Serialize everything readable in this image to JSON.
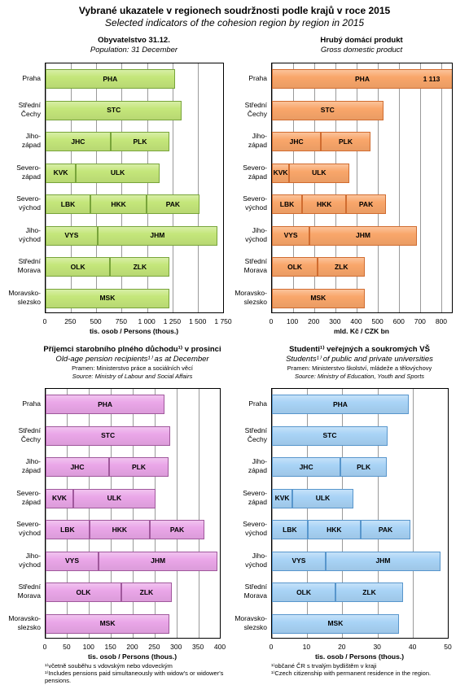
{
  "title": "Vybrané ukazatele v regionech soudržnosti podle krajů v roce 2015",
  "subtitle": "Selected indicators of the cohesion region by region in 2015",
  "chart_data": [
    {
      "type": "bar",
      "orientation": "horizontal",
      "stacked": true,
      "color": "#c4e67a",
      "border_color": "#78a43a",
      "title": "Obyvatelstvo 31.12.",
      "subtitle": "Population: 31 December",
      "x_label": "tis. osob / Persons (thous.)",
      "xlim": [
        0,
        1750
      ],
      "xticks": [
        0,
        250,
        500,
        750,
        {
          "value": 1000,
          "label": "1 000"
        },
        {
          "value": 1250,
          "label": "1 250"
        },
        {
          "value": 1500,
          "label": "1 500"
        },
        {
          "value": 1750,
          "label": "1 750"
        }
      ],
      "grid": true,
      "bars": [
        {
          "category": "Praha",
          "segments": [
            {
              "label": "PHA",
              "value": 1268
            }
          ]
        },
        {
          "category": "Střední\nČechy",
          "segments": [
            {
              "label": "STC",
              "value": 1338
            }
          ]
        },
        {
          "category": "Jiho-\nzápad",
          "segments": [
            {
              "label": "JHC",
              "value": 638
            },
            {
              "label": "PLK",
              "value": 578
            }
          ]
        },
        {
          "category": "Severo-\nzápad",
          "segments": [
            {
              "label": "KVK",
              "value": 297
            },
            {
              "label": "ULK",
              "value": 822
            }
          ]
        },
        {
          "category": "Severo-\nvýchod",
          "segments": [
            {
              "label": "LBK",
              "value": 440
            },
            {
              "label": "HKK",
              "value": 551
            },
            {
              "label": "PAK",
              "value": 517
            }
          ]
        },
        {
          "category": "Jiho-\nvýchod",
          "segments": [
            {
              "label": "VYS",
              "value": 510
            },
            {
              "label": "JHM",
              "value": 1176
            }
          ]
        },
        {
          "category": "Střední\nMorava",
          "segments": [
            {
              "label": "OLK",
              "value": 634
            },
            {
              "label": "ZLK",
              "value": 584
            }
          ]
        },
        {
          "category": "Moravsko-\nslezsko",
          "segments": [
            {
              "label": "MSK",
              "value": 1213
            }
          ]
        }
      ]
    },
    {
      "type": "bar",
      "orientation": "horizontal",
      "stacked": true,
      "color": "#f9a66a",
      "border_color": "#d06c30",
      "title": "Hrubý domácí produkt",
      "subtitle": "Gross domestic product",
      "x_label": "mld. Kč / CZK bn",
      "xlim": [
        0,
        850
      ],
      "xticks": [
        0,
        100,
        200,
        300,
        400,
        500,
        600,
        700,
        800
      ],
      "grid": true,
      "bars": [
        {
          "category": "Praha",
          "segments": [
            {
              "label": "PHA",
              "value": 1113,
              "value_label": "1 113"
            }
          ]
        },
        {
          "category": "Střední\nČechy",
          "segments": [
            {
              "label": "STC",
              "value": 523
            }
          ]
        },
        {
          "category": "Jiho-\nzápad",
          "segments": [
            {
              "label": "JHC",
              "value": 231
            },
            {
              "label": "PLK",
              "value": 231
            }
          ]
        },
        {
          "category": "Severo-\nzápad",
          "segments": [
            {
              "label": "KVK",
              "value": 81
            },
            {
              "label": "ULK",
              "value": 281
            }
          ]
        },
        {
          "category": "Severo-\nvýchod",
          "segments": [
            {
              "label": "LBK",
              "value": 142
            },
            {
              "label": "HKK",
              "value": 208
            },
            {
              "label": "PAK",
              "value": 185
            }
          ]
        },
        {
          "category": "Jiho-\nvýchod",
          "segments": [
            {
              "label": "VYS",
              "value": 177
            },
            {
              "label": "JHM",
              "value": 504
            }
          ]
        },
        {
          "category": "Střední\nMorava",
          "segments": [
            {
              "label": "OLK",
              "value": 215
            },
            {
              "label": "ZLK",
              "value": 223
            }
          ]
        },
        {
          "category": "Moravsko-\nslezsko",
          "segments": [
            {
              "label": "MSK",
              "value": 435
            }
          ]
        }
      ]
    },
    {
      "type": "bar",
      "orientation": "horizontal",
      "stacked": true,
      "color": "#eaa6e8",
      "border_color": "#a0589c",
      "title": "Příjemci starobního plného důchodu¹⁾ v prosinci",
      "subtitle": "Old-age pension recipients¹⁾ as at December",
      "source_cz": "Pramen: Ministerstvo práce a sociálních věcí",
      "source_en": "Source: Ministry of Labour and Social Affairs",
      "x_label": "tis. osob / Persons (thous.)",
      "xlim": [
        0,
        400
      ],
      "xticks": [
        0,
        50,
        100,
        150,
        200,
        250,
        300,
        350,
        400
      ],
      "grid": true,
      "footnotes": [
        "¹⁾včetně souběhu s vdovským nebo vdoveckým",
        "¹⁾Includes pensions paid simultaneously with widow's or widower's pensions."
      ],
      "bars": [
        {
          "category": "Praha",
          "segments": [
            {
              "label": "PHA",
              "value": 272
            }
          ]
        },
        {
          "category": "Střední\nČechy",
          "segments": [
            {
              "label": "STC",
              "value": 285
            }
          ]
        },
        {
          "category": "Jiho-\nzápad",
          "segments": [
            {
              "label": "JHC",
              "value": 145
            },
            {
              "label": "PLK",
              "value": 136
            }
          ]
        },
        {
          "category": "Severo-\nzápad",
          "segments": [
            {
              "label": "KVK",
              "value": 63
            },
            {
              "label": "ULK",
              "value": 188
            }
          ]
        },
        {
          "category": "Severo-\nvýchod",
          "segments": [
            {
              "label": "LBK",
              "value": 100
            },
            {
              "label": "HKK",
              "value": 138
            },
            {
              "label": "PAK",
              "value": 125
            }
          ]
        },
        {
          "category": "Jiho-\nvýchod",
          "segments": [
            {
              "label": "VYS",
              "value": 121
            },
            {
              "label": "JHM",
              "value": 272
            }
          ]
        },
        {
          "category": "Střední\nMorava",
          "segments": [
            {
              "label": "OLK",
              "value": 173
            },
            {
              "label": "ZLK",
              "value": 115
            }
          ]
        },
        {
          "category": "Moravsko-\nslezsko",
          "segments": [
            {
              "label": "MSK",
              "value": 283
            }
          ]
        }
      ]
    },
    {
      "type": "bar",
      "orientation": "horizontal",
      "stacked": true,
      "color": "#a8d3f6",
      "border_color": "#5896cc",
      "title": "Studenti¹⁾ veřejných a soukromých VŠ",
      "subtitle": "Students¹⁾ of public and private universities",
      "source_cz": "Pramen: Ministerstvo školství, mládeže a tělovýchovy",
      "source_en": "Source: Ministry of Education, Youth and Sports",
      "x_label": "tis. osob / Persons (thous.)",
      "xlim": [
        0,
        50
      ],
      "xticks": [
        0,
        10,
        20,
        30,
        40,
        50
      ],
      "grid": true,
      "footnotes": [
        "¹⁾občané ČR s trvalým bydlištěm v kraji",
        "¹⁾Czech citizenship with permanent residence in the region."
      ],
      "bars": [
        {
          "category": "Praha",
          "segments": [
            {
              "label": "PHA",
              "value": 38.7
            }
          ]
        },
        {
          "category": "Střední\nČechy",
          "segments": [
            {
              "label": "STC",
              "value": 32.7
            }
          ]
        },
        {
          "category": "Jiho-\nzápad",
          "segments": [
            {
              "label": "JHC",
              "value": 19.4
            },
            {
              "label": "PLK",
              "value": 13.1
            }
          ]
        },
        {
          "category": "Severo-\nzápad",
          "segments": [
            {
              "label": "KVK",
              "value": 5.8
            },
            {
              "label": "ULK",
              "value": 17.2
            }
          ]
        },
        {
          "category": "Severo-\nvýchod",
          "segments": [
            {
              "label": "LBK",
              "value": 10.1
            },
            {
              "label": "HKK",
              "value": 15.0
            },
            {
              "label": "PAK",
              "value": 14.1
            }
          ]
        },
        {
          "category": "Jiho-\nvýchod",
          "segments": [
            {
              "label": "VYS",
              "value": 15.2
            },
            {
              "label": "JHM",
              "value": 32.5
            }
          ]
        },
        {
          "category": "Střední\nMorava",
          "segments": [
            {
              "label": "OLK",
              "value": 18.0
            },
            {
              "label": "ZLK",
              "value": 19.1
            }
          ]
        },
        {
          "category": "Moravsko-\nslezsko",
          "segments": [
            {
              "label": "MSK",
              "value": 35.9
            }
          ]
        }
      ]
    }
  ]
}
